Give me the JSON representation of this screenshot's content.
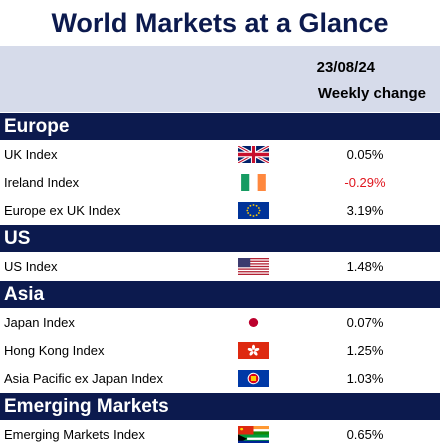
{
  "title": "World Markets at a Glance",
  "date": "23/08/24",
  "column_header": "Weekly change",
  "colors": {
    "navy": "#0c1a4e",
    "header_band": "#d6dbea",
    "negative": "#e0161e"
  },
  "sections": [
    {
      "label": "Europe",
      "rows": [
        {
          "name": "UK Index",
          "flag": "uk-flag-icon",
          "value": "0.05%"
        },
        {
          "name": "Ireland Index",
          "flag": "ireland-flag-icon",
          "value": "-0.29%"
        },
        {
          "name": "Europe ex UK Index",
          "flag": "eu-flag-icon",
          "value": "3.19%"
        }
      ]
    },
    {
      "label": "US",
      "rows": [
        {
          "name": "US Index",
          "flag": "us-flag-icon",
          "value": "1.48%"
        }
      ]
    },
    {
      "label": "Asia",
      "rows": [
        {
          "name": "Japan Index",
          "flag": "japan-flag-icon",
          "value": "0.07%"
        },
        {
          "name": "Hong Kong Index",
          "flag": "hong-kong-flag-icon",
          "value": "1.25%"
        },
        {
          "name": "Asia Pacific ex Japan Index",
          "flag": "asean-flag-icon",
          "value": "1.03%"
        }
      ]
    },
    {
      "label": "Emerging Markets",
      "rows": [
        {
          "name": "Emerging Markets Index",
          "flag": "emerging-markets-flag-icon",
          "value": "0.65%"
        }
      ]
    }
  ]
}
